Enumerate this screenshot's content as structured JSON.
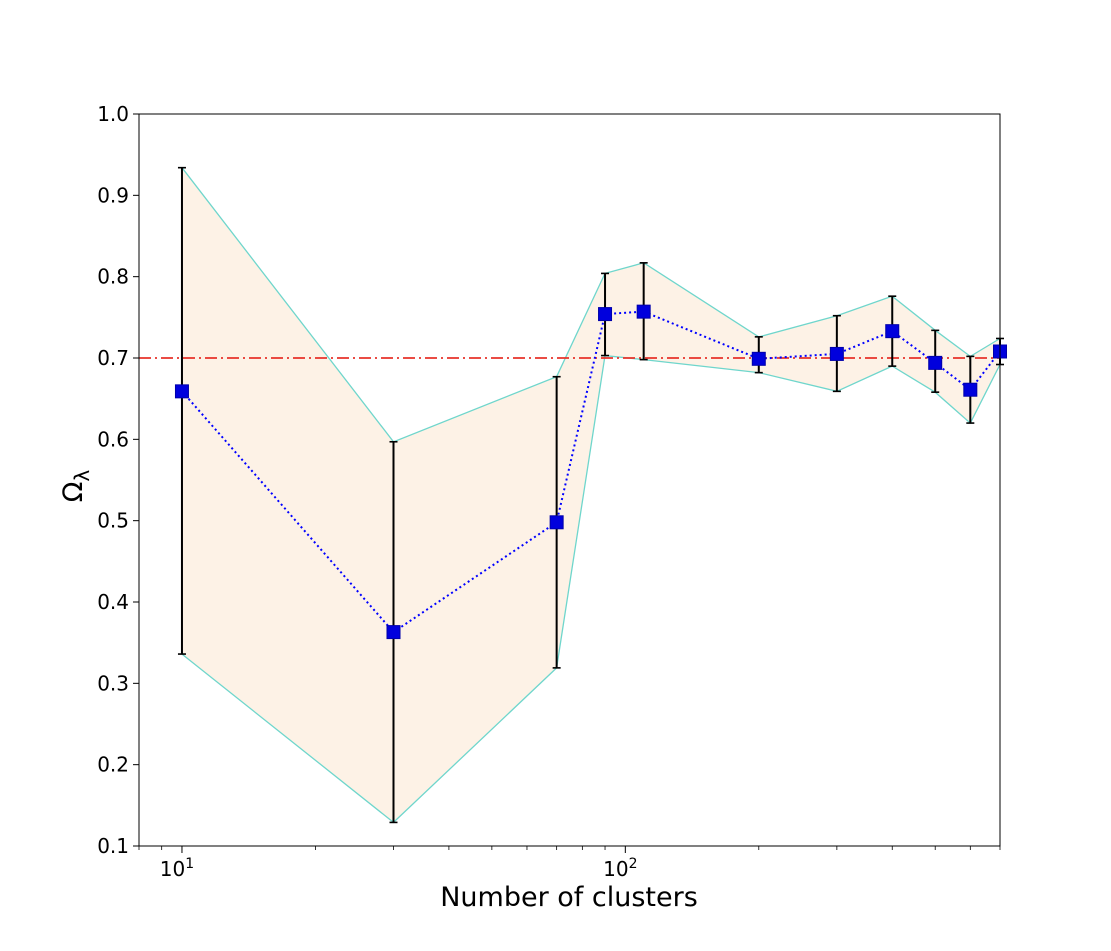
{
  "chart_data": {
    "type": "line",
    "title": "",
    "xlabel": "Number of clusters",
    "ylabel": "Ω",
    "ylabel_subscript": "λ",
    "xscale": "log",
    "xlim": [
      8,
      700
    ],
    "ylim": [
      0.1,
      1.0
    ],
    "grid": false,
    "legend": "none",
    "x_ticks": [
      {
        "value": 10,
        "base": "10",
        "exp": "1"
      },
      {
        "value": 100,
        "base": "10",
        "exp": "2"
      }
    ],
    "y_ticks": [
      {
        "value": 0.1,
        "label": "0.1"
      },
      {
        "value": 0.2,
        "label": "0.2"
      },
      {
        "value": 0.3,
        "label": "0.3"
      },
      {
        "value": 0.4,
        "label": "0.4"
      },
      {
        "value": 0.5,
        "label": "0.5"
      },
      {
        "value": 0.6,
        "label": "0.6"
      },
      {
        "value": 0.7,
        "label": "0.7"
      },
      {
        "value": 0.8,
        "label": "0.8"
      },
      {
        "value": 0.9,
        "label": "0.9"
      },
      {
        "value": 1.0,
        "label": "1.0"
      }
    ],
    "series": [
      {
        "x": [
          10,
          30,
          70,
          90,
          110,
          200,
          300,
          400,
          500,
          600,
          700
        ],
        "y": [
          0.659,
          0.363,
          0.498,
          0.754,
          0.757,
          0.699,
          0.705,
          0.733,
          0.694,
          0.661,
          0.708
        ],
        "yerr_low": [
          0.336,
          0.129,
          0.319,
          0.703,
          0.698,
          0.682,
          0.659,
          0.69,
          0.658,
          0.62,
          0.692
        ],
        "yerr_high": [
          0.934,
          0.597,
          0.677,
          0.804,
          0.817,
          0.726,
          0.752,
          0.776,
          0.734,
          0.702,
          0.724
        ]
      }
    ],
    "reference_line": {
      "y": 0.7,
      "style": "dash-dot"
    },
    "colors": {
      "marker": "#0000dd",
      "marker_edge": "#0000aa",
      "line": "#0000ff",
      "band_fill": "#fdf2e6",
      "band_edge": "#6fd6cc",
      "errorbar": "#000000",
      "reference": "#e8332a"
    }
  }
}
